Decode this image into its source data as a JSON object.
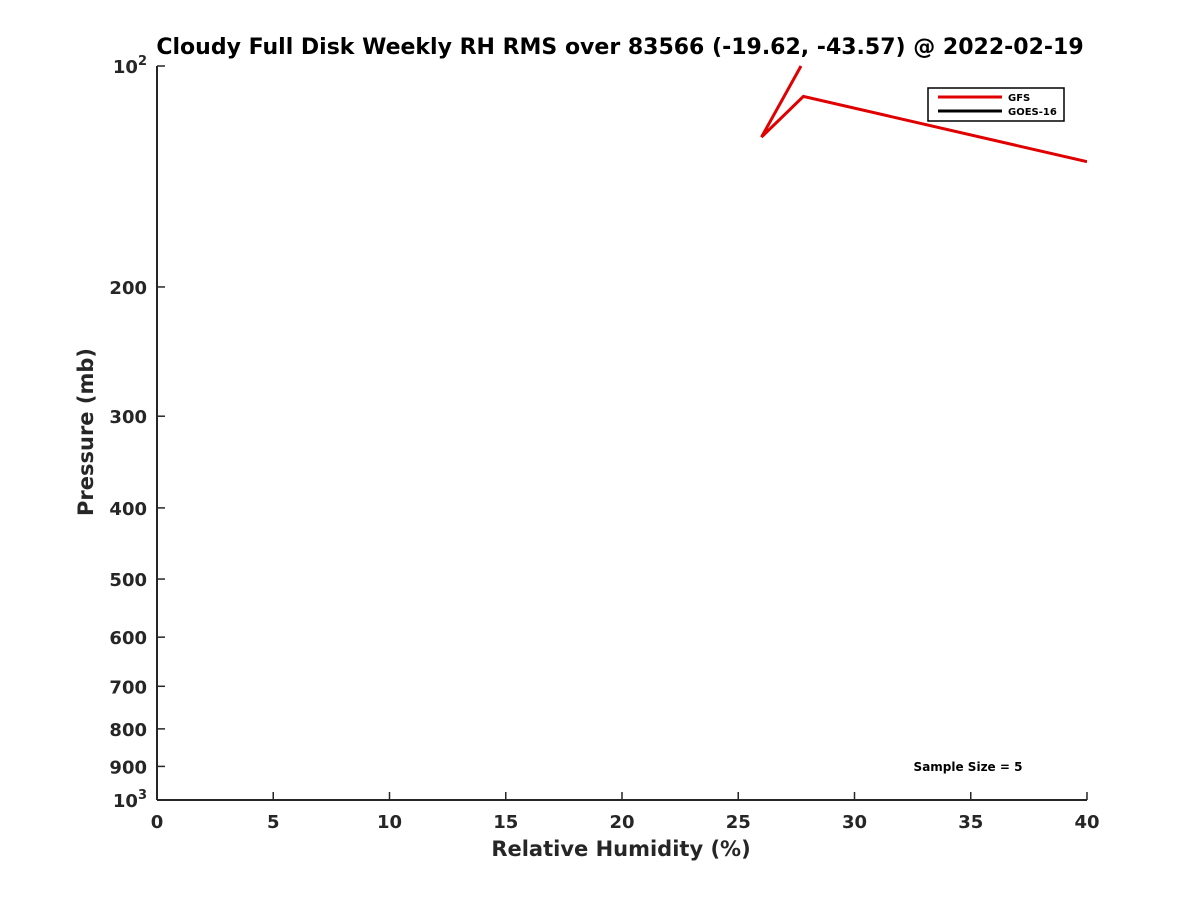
{
  "chart_data": {
    "type": "line",
    "title": "Cloudy Full Disk Weekly RH RMS over 83566 (-19.62, -43.57) @ 2022-02-19",
    "xlabel": "Relative Humidity (%)",
    "ylabel": "Pressure (mb)",
    "xlim": [
      0,
      40
    ],
    "ylim": [
      1000,
      100
    ],
    "yscale": "log",
    "y_reversed": true,
    "grid": false,
    "legend_position": "top-right",
    "x_ticks": [
      "0",
      "5",
      "10",
      "15",
      "20",
      "25",
      "30",
      "35",
      "40"
    ],
    "y_ticks": [
      {
        "value": 100,
        "base": "10",
        "exp": "2"
      },
      {
        "value": 200,
        "label": "200"
      },
      {
        "value": 300,
        "label": "300"
      },
      {
        "value": 400,
        "label": "400"
      },
      {
        "value": 500,
        "label": "500"
      },
      {
        "value": 600,
        "label": "600"
      },
      {
        "value": 700,
        "label": "700"
      },
      {
        "value": 800,
        "label": "800"
      },
      {
        "value": 900,
        "label": "900"
      },
      {
        "value": 1000,
        "base": "10",
        "exp": "3"
      }
    ],
    "annotation": "Sample Size = 5",
    "series": [
      {
        "name": "GFS",
        "color": "#e00000",
        "points": [
          [
            27.7,
            100
          ],
          [
            26.0,
            125
          ],
          [
            27.8,
            110
          ],
          [
            40,
            135
          ]
        ]
      },
      {
        "name": "GOES-16",
        "color": "#000000",
        "points": []
      }
    ]
  }
}
